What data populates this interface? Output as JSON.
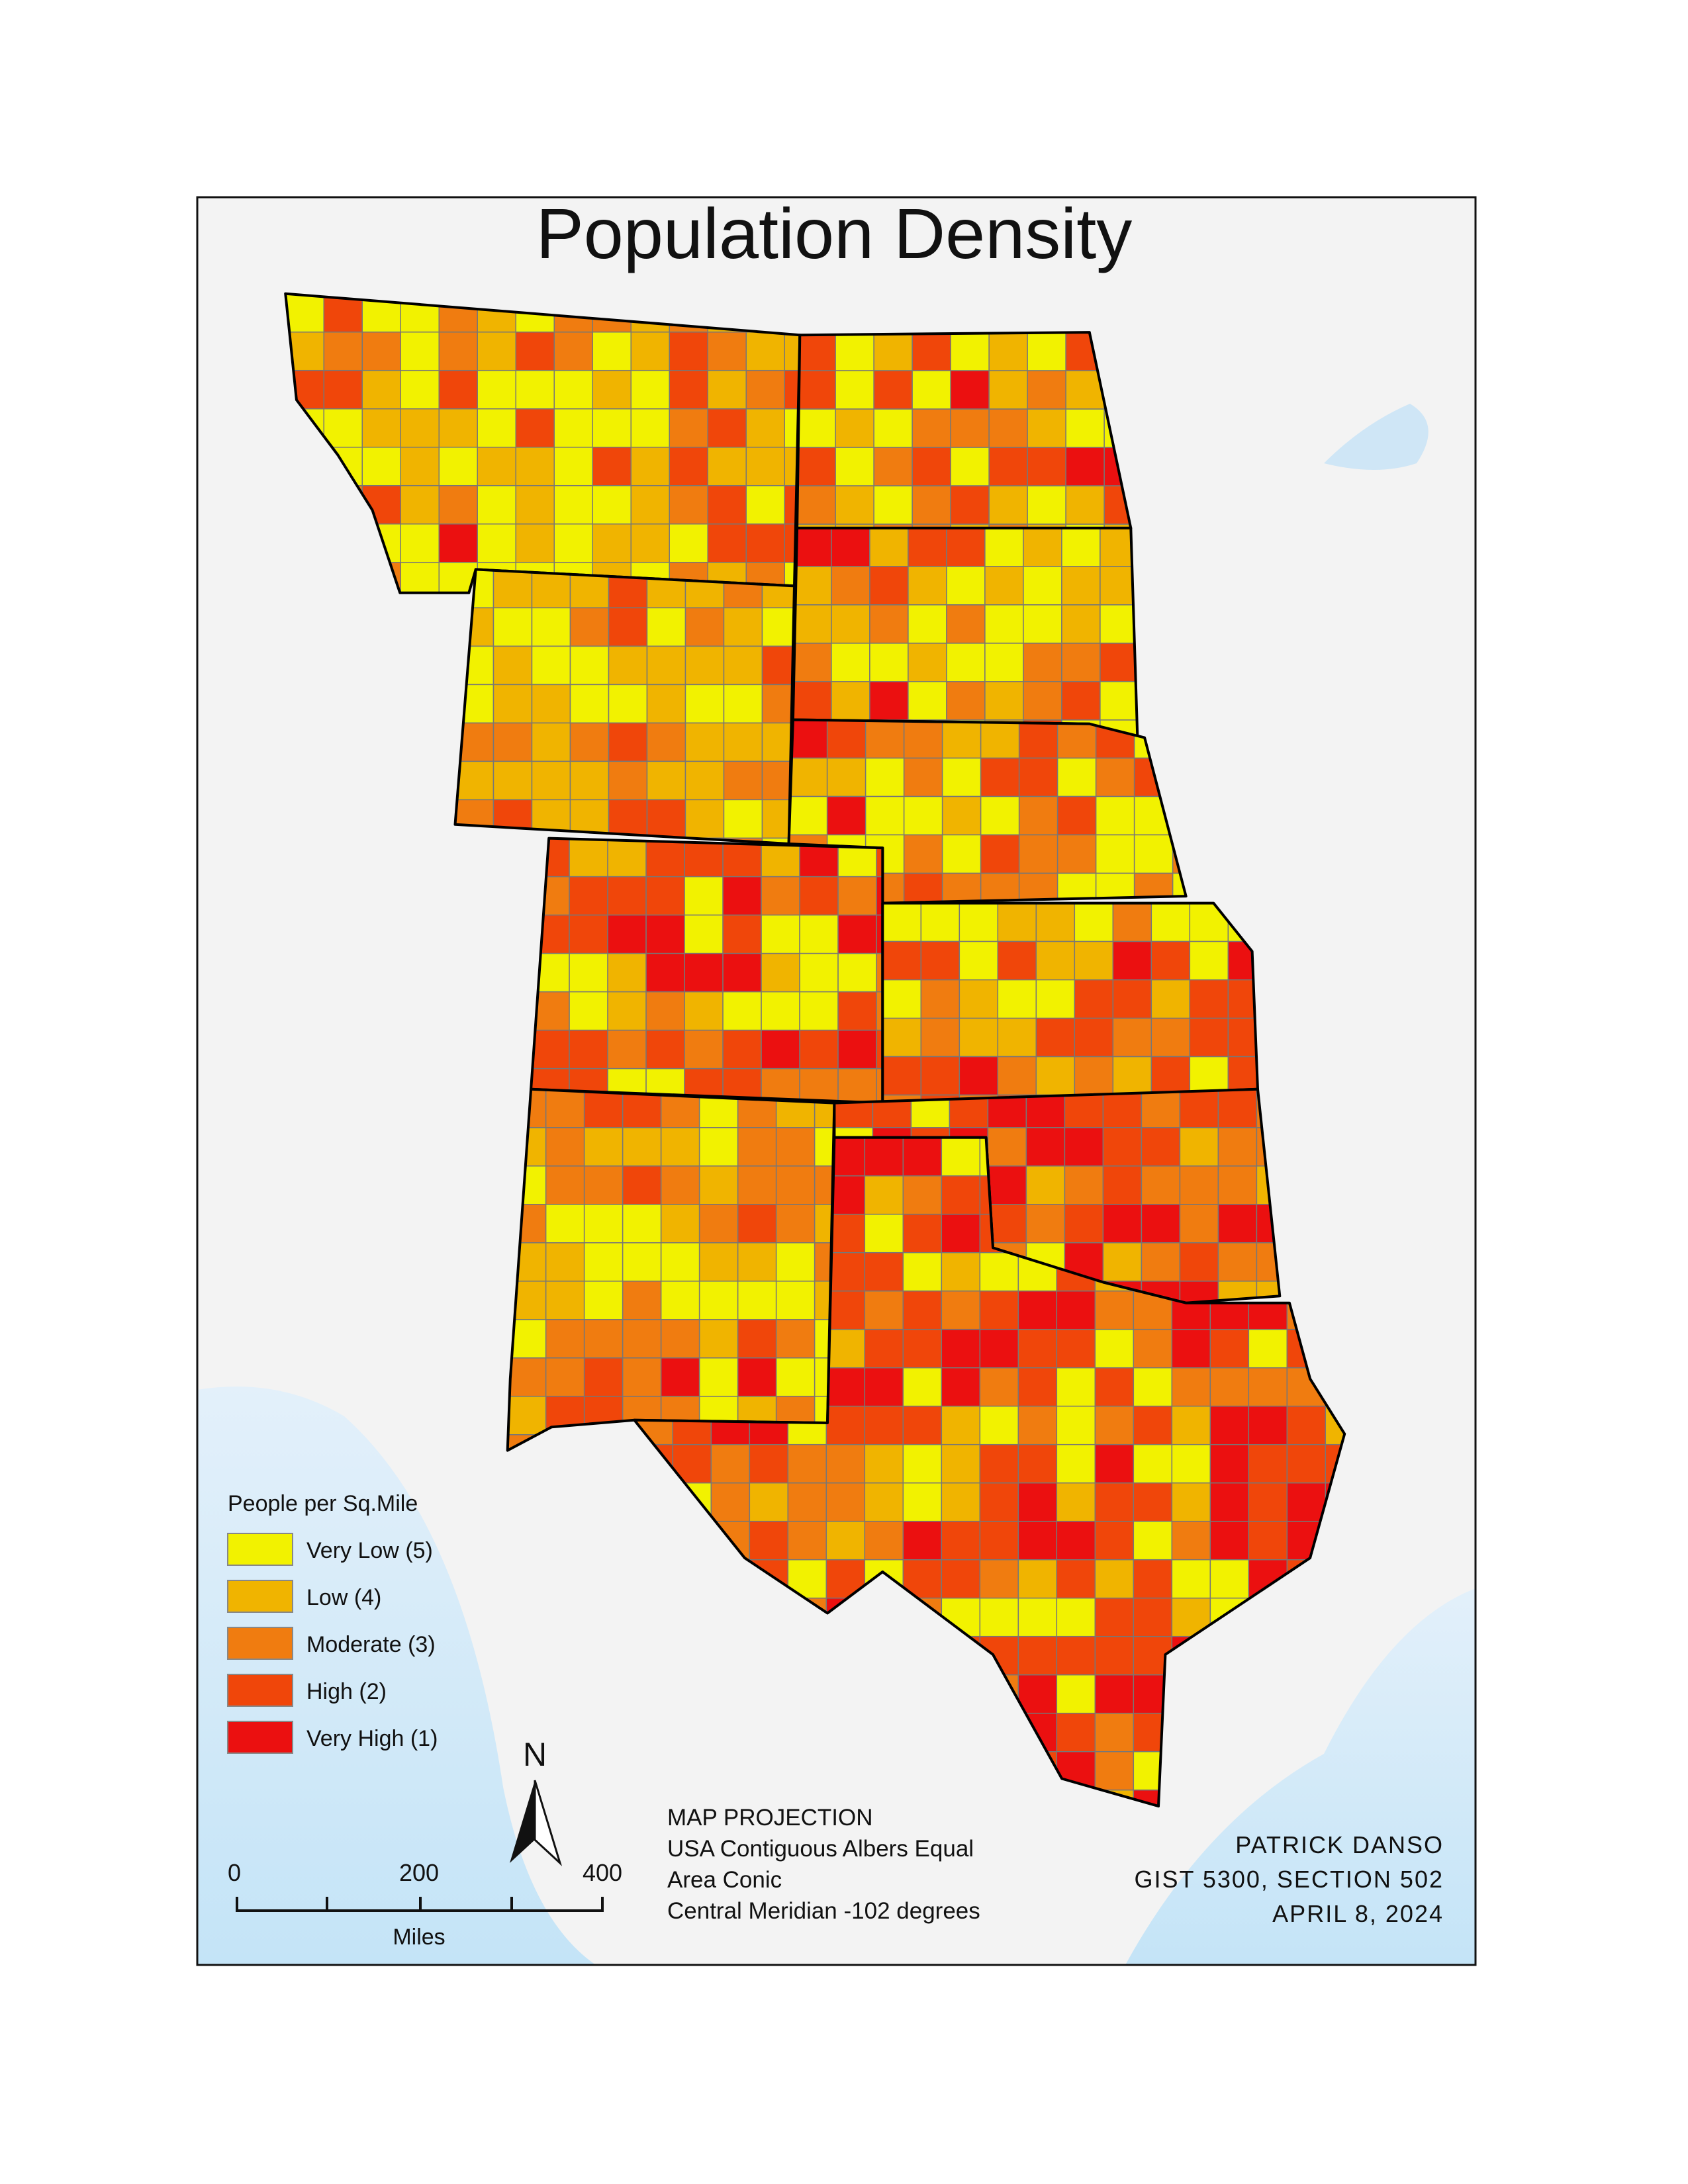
{
  "title": "Population Density",
  "legend": {
    "title": "People per Sq.Mile",
    "items": [
      {
        "label": "Very Low (5)",
        "color": "#f2f200"
      },
      {
        "label": "Low (4)",
        "color": "#f0b400"
      },
      {
        "label": "Moderate (3)",
        "color": "#f07c10"
      },
      {
        "label": "High (2)",
        "color": "#f0460a"
      },
      {
        "label": "Very High (1)",
        "color": "#eb1010"
      }
    ]
  },
  "scale_bar": {
    "labels": [
      "0",
      "200",
      "400"
    ],
    "unit": "Miles"
  },
  "north_arrow": "N",
  "projection": [
    "MAP PROJECTION",
    "USA Contiguous Albers Equal",
    "Area Conic",
    "Central Meridian -102 degrees"
  ],
  "credits": [
    "PATRICK DANSO",
    "GIST 5300, SECTION 502",
    "APRIL 8, 2024"
  ]
}
